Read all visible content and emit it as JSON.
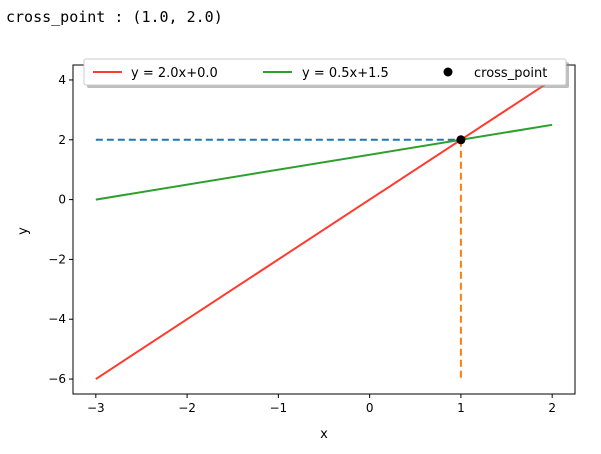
{
  "output": {
    "text": "cross_point : (1.0, 2.0)"
  },
  "chart_data": {
    "type": "line",
    "xlabel": "x",
    "ylabel": "y",
    "xlim": [
      -3.25,
      2.25
    ],
    "ylim": [
      -6.5,
      4.5
    ],
    "x_ticks": [
      -3,
      -2,
      -1,
      0,
      1,
      2
    ],
    "y_ticks": [
      -6,
      -4,
      -2,
      0,
      2,
      4
    ],
    "x_tick_labels": [
      "−3",
      "−2",
      "−1",
      "0",
      "1",
      "2"
    ],
    "y_tick_labels": [
      "−6",
      "−4",
      "−2",
      "0",
      "2",
      "4"
    ],
    "legend_position": "top",
    "series": [
      {
        "name": "y = 2.0x+0.0",
        "x": [
          -3,
          2
        ],
        "y": [
          -6,
          4
        ],
        "color": "#ff3b30"
      },
      {
        "name": "y = 0.5x+1.5",
        "x": [
          -3,
          2
        ],
        "y": [
          0,
          2.5
        ],
        "color": "#2ca02c"
      }
    ],
    "cross_point": {
      "name": "cross_point",
      "x": 1.0,
      "y": 2.0,
      "color": "#000000"
    },
    "guides": [
      {
        "x": [
          -3,
          1
        ],
        "y": [
          2,
          2
        ],
        "color": "#1f77b4",
        "style": "dashed"
      },
      {
        "x": [
          1,
          1
        ],
        "y": [
          2,
          -6
        ],
        "color": "#ff7f0e",
        "style": "dashed"
      }
    ]
  }
}
